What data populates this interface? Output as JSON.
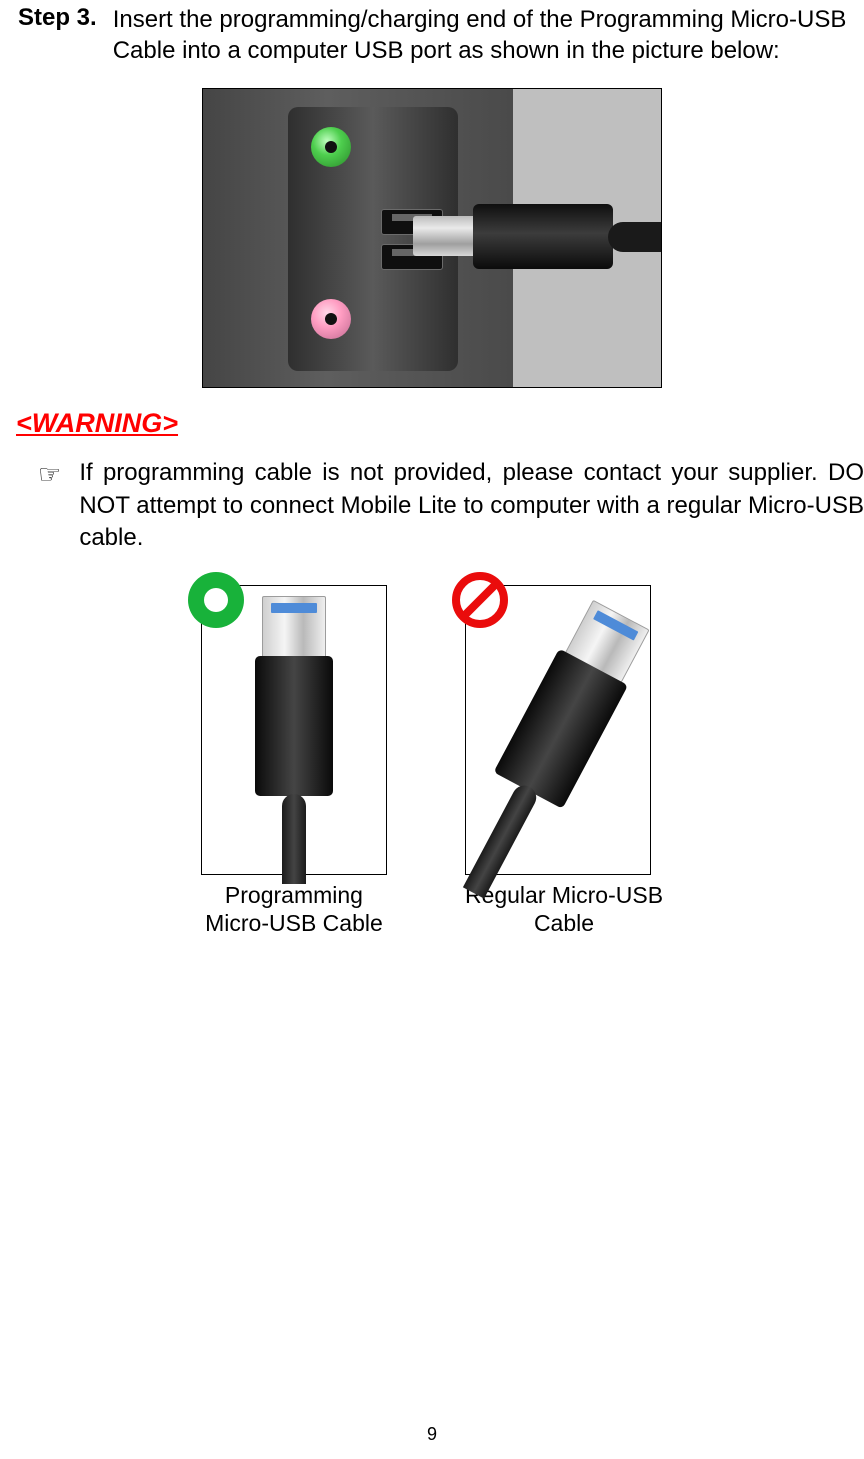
{
  "step": {
    "label": "Step 3.",
    "text": "Insert the programming/charging end of the Programming Micro-USB Cable into a computer USB port as shown in the picture below:"
  },
  "warning": {
    "title": "<WARNING>",
    "bullet_icon": "☞",
    "text": "If programming cable is not provided, please contact your supplier. DO NOT attempt to connect Mobile Lite to computer with a regular Micro-USB cable."
  },
  "cables": {
    "ok_caption_line1": "Programming",
    "ok_caption_line2": "Micro-USB Cable",
    "no_caption_line1": "Regular Micro-USB",
    "no_caption_line2": "Cable"
  },
  "colors": {
    "warning_red": "#ff0000",
    "marker_green": "#18b23a",
    "marker_red": "#ea0c0c",
    "jack_green": "#4ecf4e",
    "jack_pink": "#ff9dc2",
    "text": "#000000",
    "background": "#ffffff"
  },
  "page_number": "9"
}
